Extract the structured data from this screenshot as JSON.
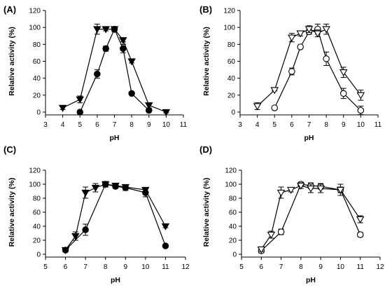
{
  "chart_data": [
    {
      "panel": "(A)",
      "type": "line",
      "xlabel": "pH",
      "ylabel": "Relative activity (%)",
      "xlim": [
        3,
        11
      ],
      "ylim": [
        0,
        120
      ],
      "xticks": [
        3,
        4,
        5,
        6,
        7,
        8,
        9,
        10,
        11
      ],
      "yticks": [
        0,
        20,
        40,
        60,
        80,
        100,
        120
      ],
      "series": [
        {
          "marker": "circle",
          "fill": "filled",
          "x": [
            5,
            6,
            6.5,
            7,
            7.5,
            8,
            9
          ],
          "y": [
            0,
            45,
            75,
            98,
            75,
            22,
            2
          ],
          "err": [
            1,
            5,
            3,
            3,
            5,
            1,
            1
          ]
        },
        {
          "marker": "triangle-down",
          "fill": "filled",
          "x": [
            4,
            5,
            6,
            6.5,
            7,
            7.5,
            8,
            9,
            10
          ],
          "y": [
            5,
            15,
            98,
            98,
            98,
            85,
            60,
            8,
            0
          ],
          "err": [
            2,
            4,
            6,
            2,
            3,
            2,
            2,
            3,
            1
          ]
        }
      ]
    },
    {
      "panel": "(B)",
      "type": "line",
      "xlabel": "pH",
      "ylabel": "Relative activity (%)",
      "xlim": [
        3,
        11
      ],
      "ylim": [
        0,
        120
      ],
      "xticks": [
        3,
        4,
        5,
        6,
        7,
        8,
        9,
        10,
        11
      ],
      "yticks": [
        0,
        20,
        40,
        60,
        80,
        100,
        120
      ],
      "series": [
        {
          "marker": "circle",
          "fill": "open",
          "x": [
            5,
            6,
            6.5,
            7,
            7.5,
            8,
            9,
            10
          ],
          "y": [
            5,
            48,
            77,
            95,
            98,
            63,
            22,
            2
          ],
          "err": [
            1,
            4,
            2,
            3,
            6,
            8,
            6,
            5
          ]
        },
        {
          "marker": "triangle-down",
          "fill": "open",
          "x": [
            4,
            5,
            6,
            6.5,
            7,
            7.5,
            8,
            9,
            10
          ],
          "y": [
            7,
            26,
            88,
            93,
            98,
            93,
            98,
            47,
            20
          ],
          "err": [
            4,
            1,
            5,
            3,
            4,
            4,
            6,
            6,
            6
          ]
        }
      ]
    },
    {
      "panel": "(C)",
      "type": "line",
      "xlabel": "pH",
      "ylabel": "Relative activity (%)",
      "xlim": [
        5,
        12
      ],
      "ylim": [
        0,
        120
      ],
      "xticks": [
        5,
        6,
        7,
        8,
        9,
        10,
        11,
        12
      ],
      "yticks": [
        0,
        20,
        40,
        60,
        80,
        100,
        120
      ],
      "series": [
        {
          "marker": "circle",
          "fill": "filled",
          "x": [
            6,
            7,
            8,
            8.5,
            9,
            10,
            11
          ],
          "y": [
            6,
            35,
            100,
            97,
            95,
            88,
            12
          ],
          "err": [
            2,
            8,
            3,
            3,
            4,
            6,
            2
          ]
        },
        {
          "marker": "triangle-down",
          "fill": "filled",
          "x": [
            6,
            6.5,
            7,
            7.5,
            8,
            8.5,
            9,
            10,
            11
          ],
          "y": [
            6,
            26,
            88,
            95,
            100,
            98,
            96,
            92,
            40
          ],
          "err": [
            2,
            6,
            8,
            6,
            4,
            3,
            3,
            3,
            2
          ]
        }
      ]
    },
    {
      "panel": "(D)",
      "type": "line",
      "xlabel": "pH",
      "ylabel": "Relative activity (%)",
      "xlim": [
        5,
        12
      ],
      "ylim": [
        0,
        120
      ],
      "xticks": [
        5,
        6,
        7,
        8,
        9,
        10,
        11,
        12
      ],
      "yticks": [
        0,
        20,
        40,
        60,
        80,
        100,
        120
      ],
      "series": [
        {
          "marker": "circle",
          "fill": "open",
          "x": [
            6,
            7,
            8,
            8.5,
            9,
            10,
            11
          ],
          "y": [
            5,
            32,
            100,
            98,
            97,
            92,
            28
          ],
          "err": [
            3,
            4,
            3,
            4,
            4,
            4,
            3
          ]
        },
        {
          "marker": "triangle-down",
          "fill": "open",
          "x": [
            6,
            6.5,
            7,
            7.5,
            8,
            8.5,
            9,
            10,
            11
          ],
          "y": [
            7,
            28,
            88,
            92,
            98,
            94,
            94,
            92,
            50
          ],
          "err": [
            3,
            5,
            8,
            3,
            4,
            6,
            6,
            8,
            5
          ]
        }
      ]
    }
  ]
}
